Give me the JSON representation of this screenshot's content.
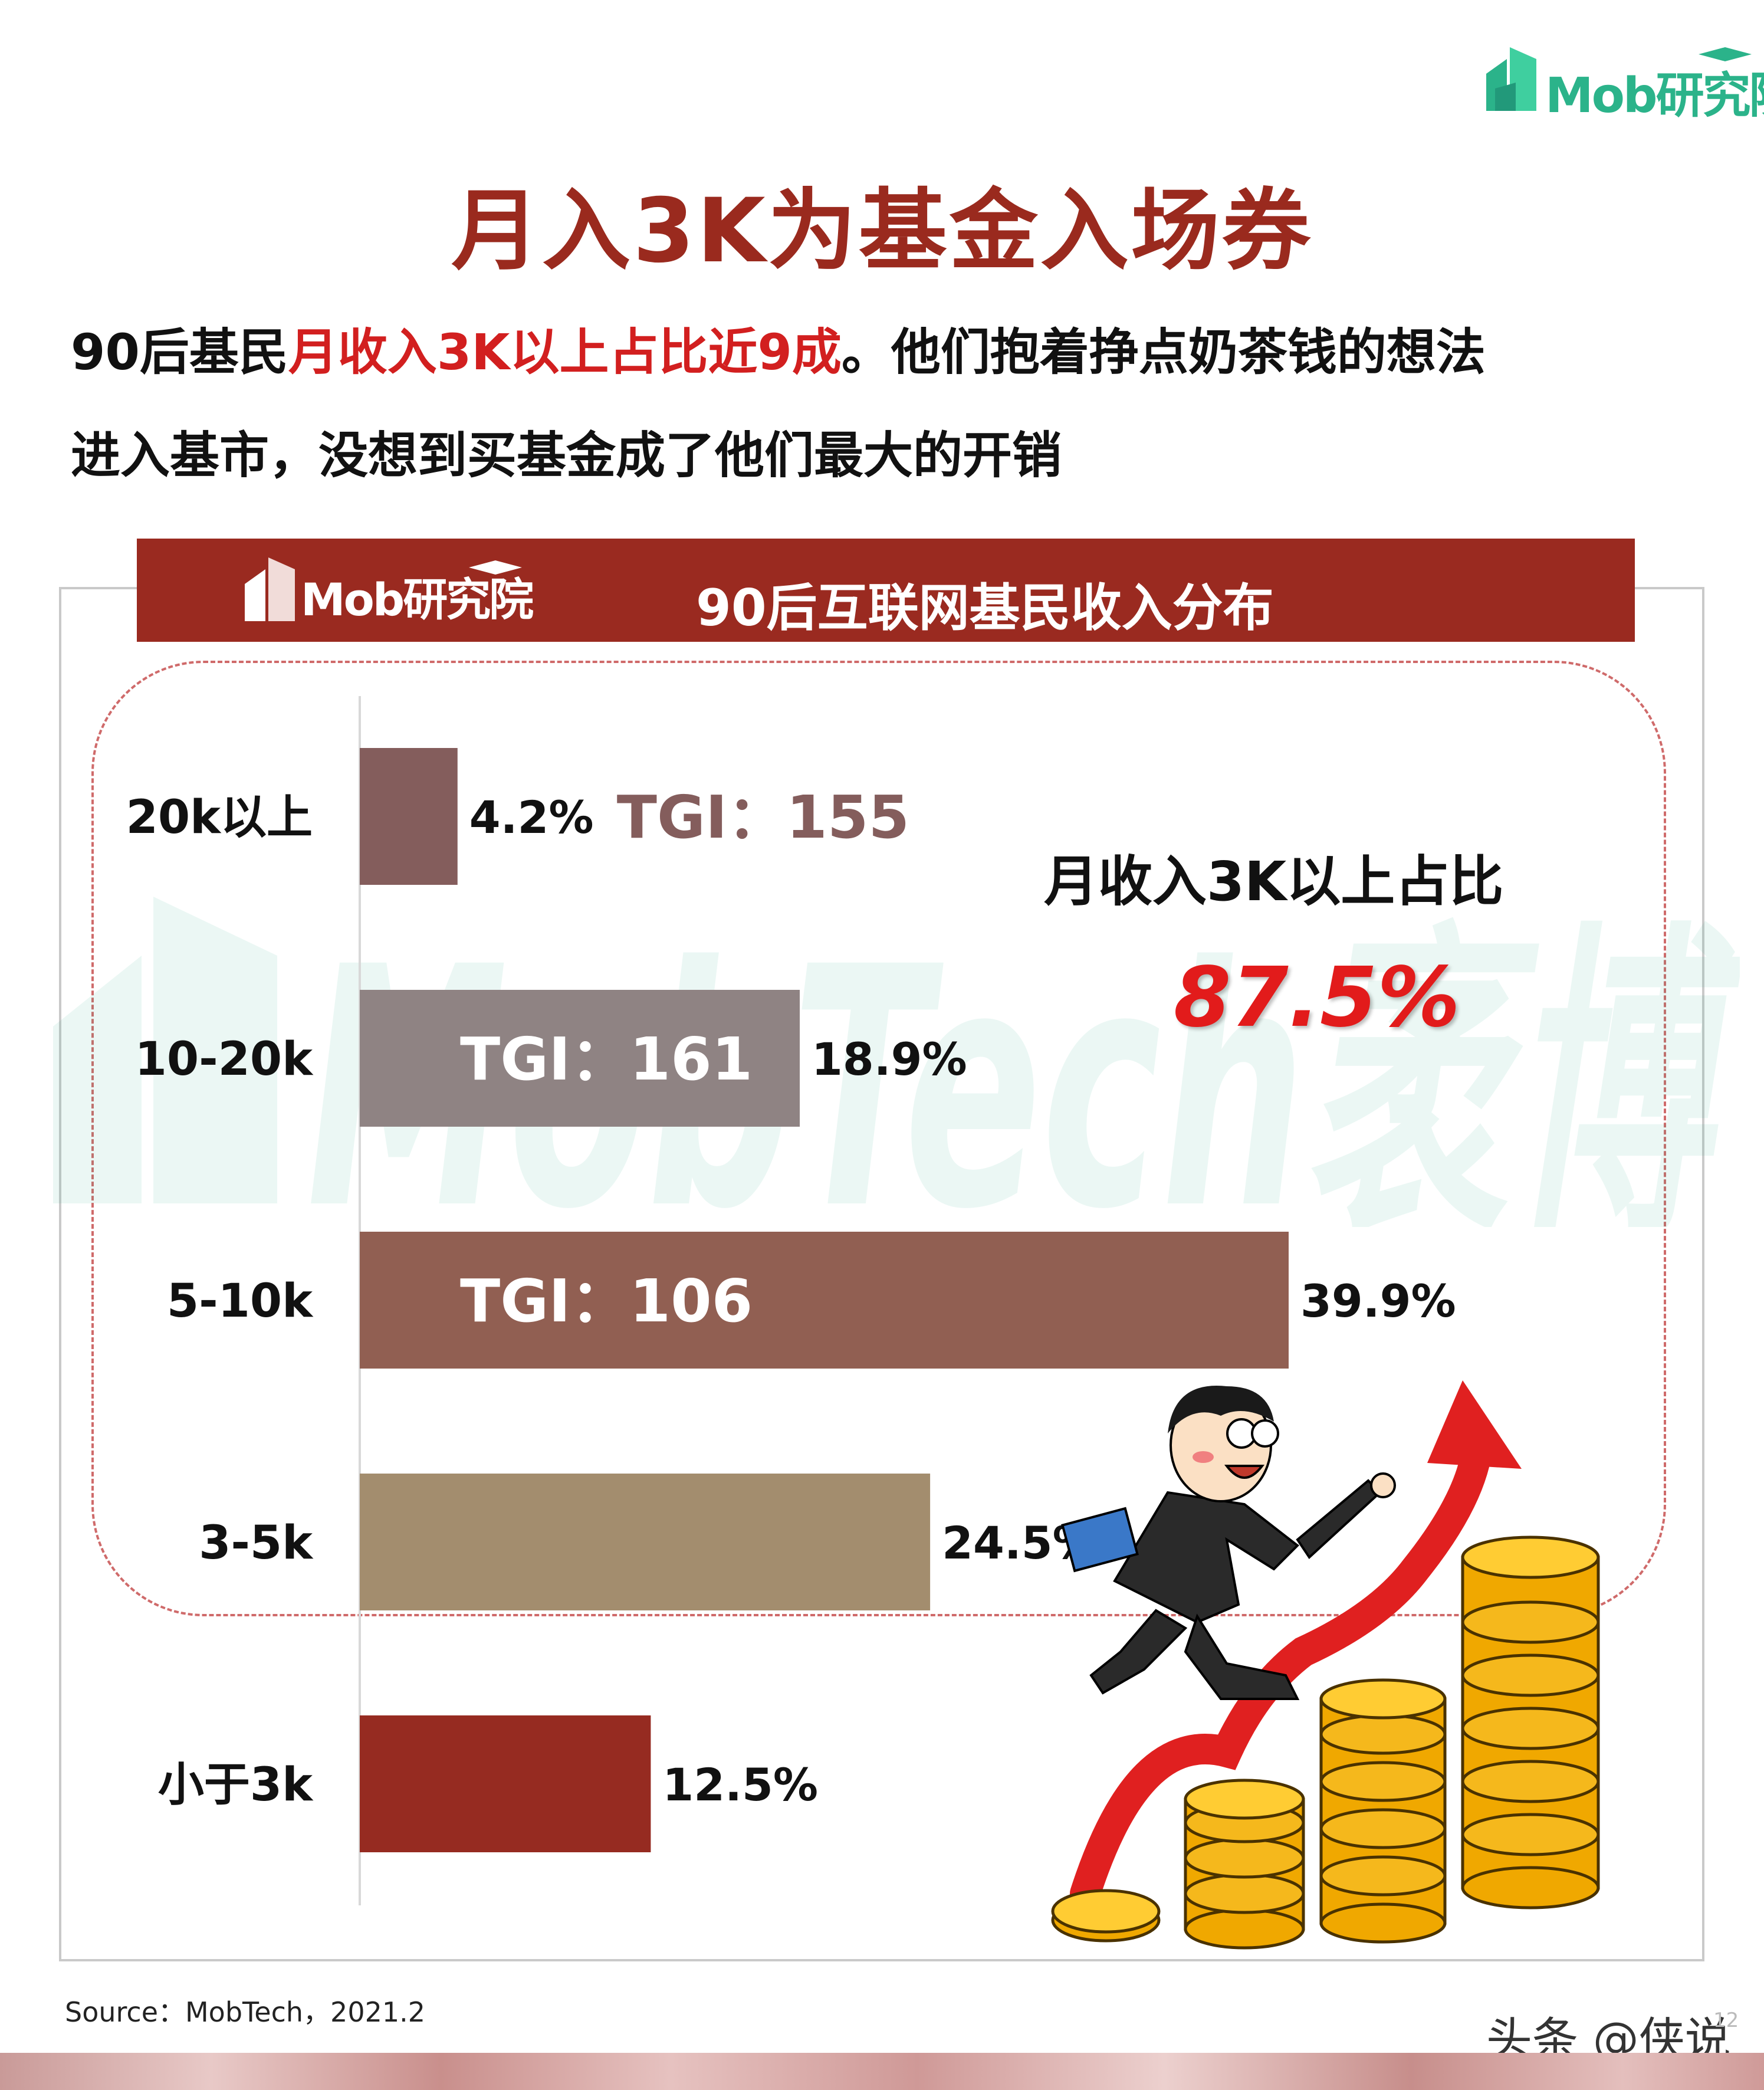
{
  "logo": {
    "text": "Mob研究院",
    "color": "#2bb38a"
  },
  "title": "月入3K为基金入场券",
  "subtitle": {
    "line1_prefix": "90后基民",
    "line1_highlight": "月收入3K以上占比近9成",
    "line1_suffix": "。他们抱着挣点奶茶钱的想法",
    "line2": "进入基市，没想到买基金成了他们最大的开销"
  },
  "banner": {
    "logo_text": "Mob研究院"
  },
  "watermark_text": "MobTech袤博",
  "callout": {
    "label": "月收入3K以上占比",
    "value": "87.5%",
    "value_color": "#e21b1b"
  },
  "chart_data": {
    "type": "bar",
    "orientation": "horizontal",
    "title": "90后互联网基民收入分布",
    "categories": [
      "20k以上",
      "10-20k",
      "5-10k",
      "3-5k",
      "小于3k"
    ],
    "values": [
      4.2,
      18.9,
      39.9,
      24.5,
      12.5
    ],
    "value_labels": [
      "4.2%",
      "18.9%",
      "39.9%",
      "24.5%",
      "12.5%"
    ],
    "tgi": [
      "TGI：155",
      "TGI：161",
      "TGI：106",
      null,
      null
    ],
    "colors": [
      "#845d5c",
      "#8f8383",
      "#915f52",
      "#a38d6e",
      "#962b21"
    ],
    "xlim": [
      0,
      39.9
    ],
    "grid": false,
    "legend": "none"
  },
  "source": "Source：MobTech，2021.2",
  "footer": {
    "watermark": "头条 @侠说",
    "page_number": "12"
  }
}
